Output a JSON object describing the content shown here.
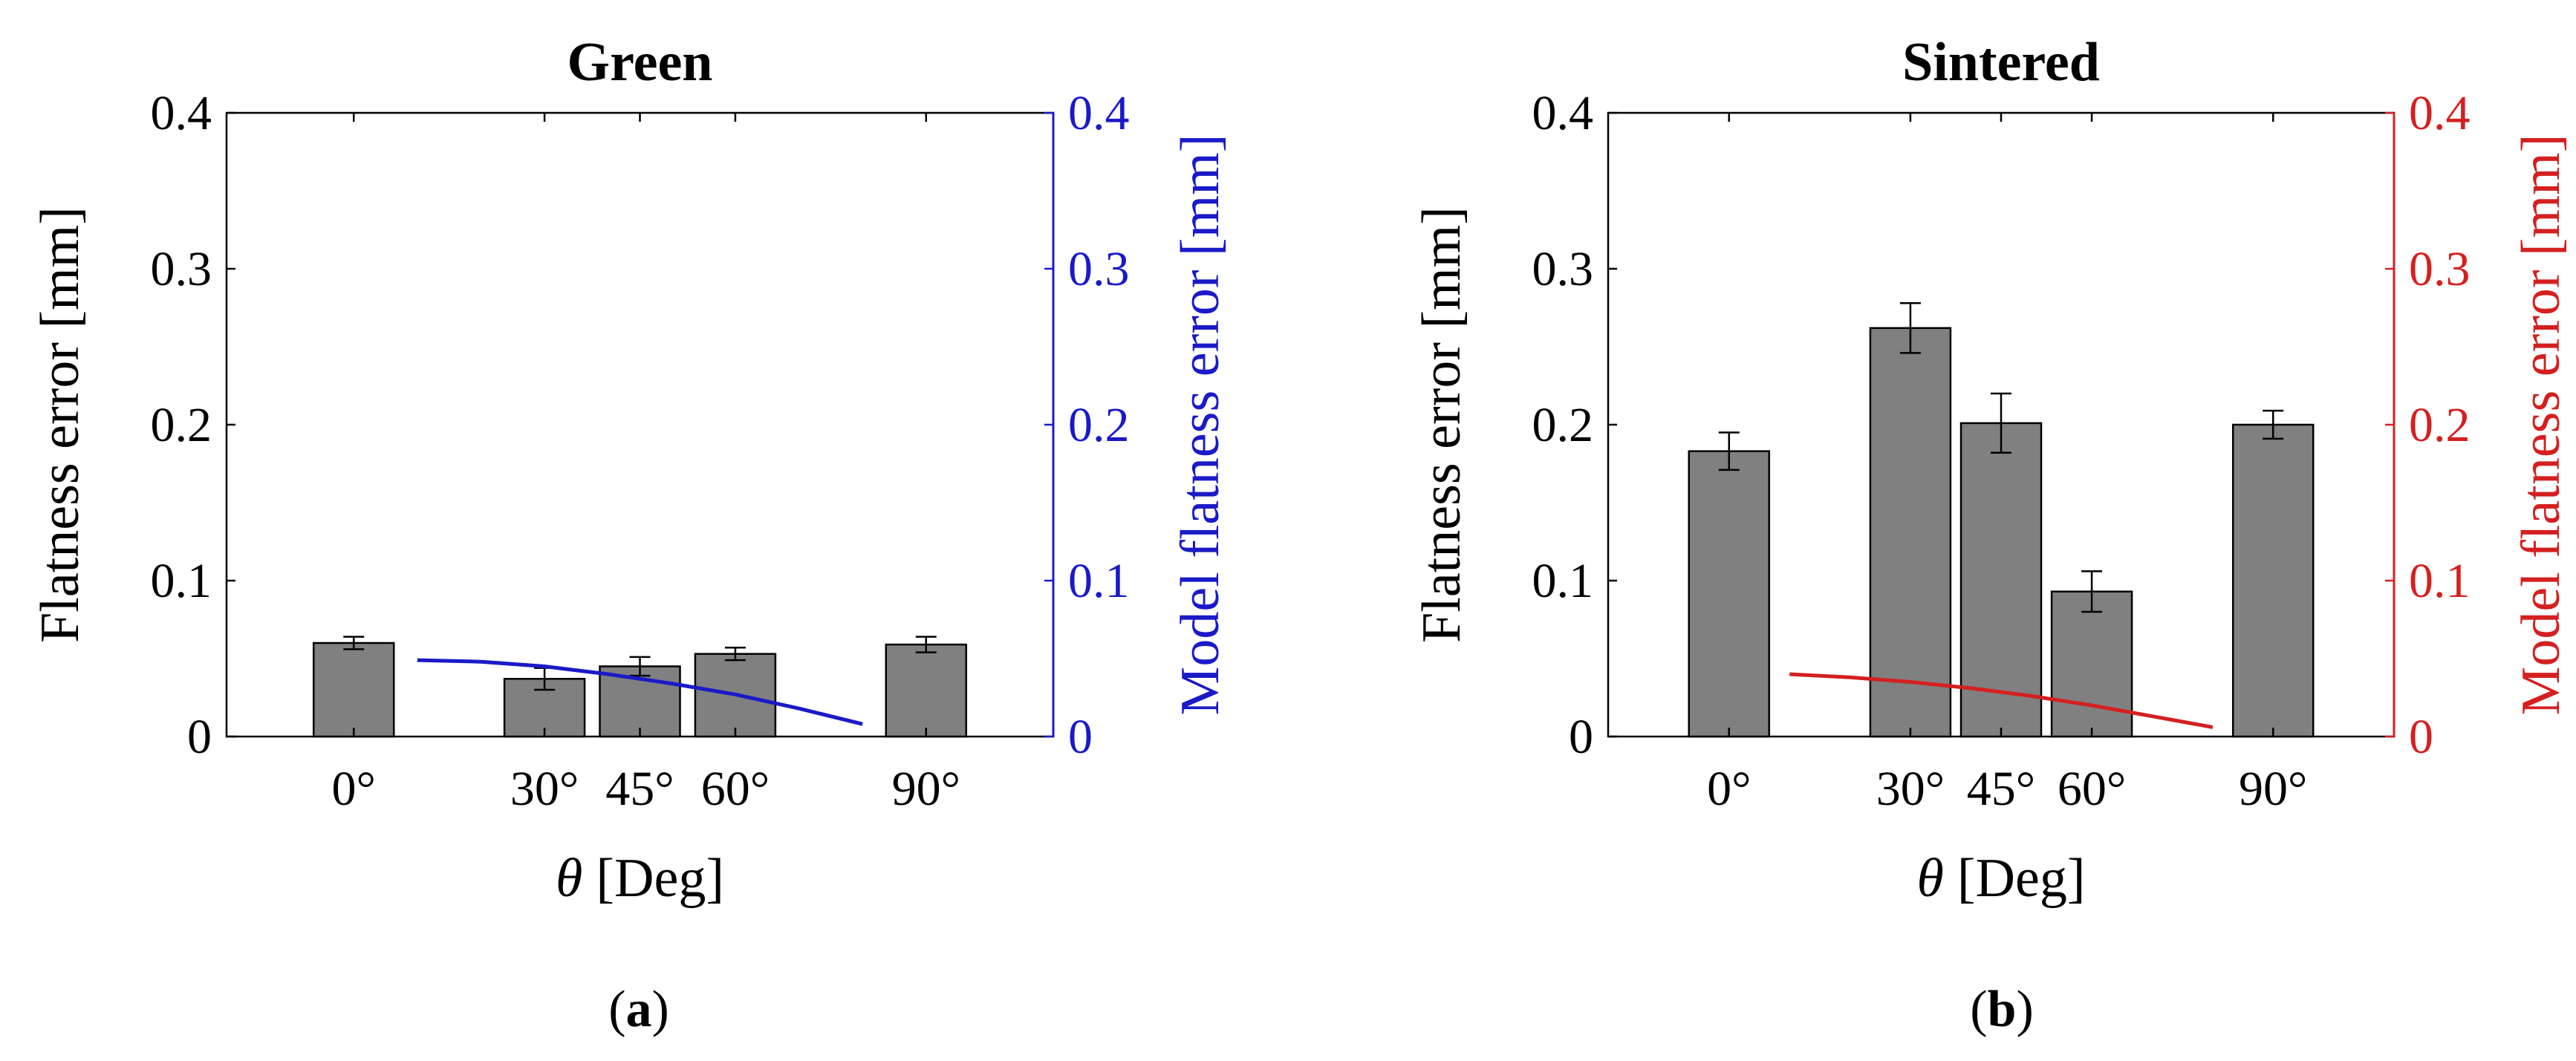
{
  "chart_data": [
    {
      "type": "bar",
      "panel_label": "(a)",
      "panel_letter": "a",
      "title": "Green",
      "xlabel_symbol": "θ",
      "xlabel_unit": "[Deg]",
      "ylabel": "Flatness error [mm]",
      "ylabel_right": "Model flatness error [mm]",
      "ylim": [
        0,
        0.4
      ],
      "yticks": [
        "0",
        "0.1",
        "0.2",
        "0.3",
        "0.4"
      ],
      "xlim": [
        -20,
        110
      ],
      "x": [
        0,
        30,
        45,
        60,
        90
      ],
      "categories": [
        "0°",
        "30°",
        "45°",
        "60°",
        "90°"
      ],
      "values": [
        0.06,
        0.037,
        0.045,
        0.053,
        0.059
      ],
      "errors": [
        0.004,
        0.007,
        0.006,
        0.004,
        0.005
      ],
      "bar_color": "#808080",
      "model_color": "#1a1ac8",
      "model_line": {
        "x": [
          10,
          20,
          30,
          40,
          50,
          60,
          70,
          80
        ],
        "y": [
          0.049,
          0.048,
          0.045,
          0.04,
          0.034,
          0.027,
          0.018,
          0.008
        ]
      }
    },
    {
      "type": "bar",
      "panel_label": "(b)",
      "panel_letter": "b",
      "title": "Sintered",
      "xlabel_symbol": "θ",
      "xlabel_unit": "[Deg]",
      "ylabel": "Flatness error [mm]",
      "ylabel_right": "Model flatness error [mm]",
      "ylim": [
        0,
        0.4
      ],
      "yticks": [
        "0",
        "0.1",
        "0.2",
        "0.3",
        "0.4"
      ],
      "xlim": [
        -20,
        110
      ],
      "x": [
        0,
        30,
        45,
        60,
        90
      ],
      "categories": [
        "0°",
        "30°",
        "45°",
        "60°",
        "90°"
      ],
      "values": [
        0.183,
        0.262,
        0.201,
        0.093,
        0.2
      ],
      "errors": [
        0.012,
        0.016,
        0.019,
        0.013,
        0.009
      ],
      "bar_color": "#808080",
      "model_color": "#d42020",
      "model_line": {
        "x": [
          10,
          20,
          30,
          40,
          50,
          60,
          70,
          80
        ],
        "y": [
          0.04,
          0.038,
          0.035,
          0.031,
          0.026,
          0.02,
          0.013,
          0.006
        ]
      }
    }
  ]
}
